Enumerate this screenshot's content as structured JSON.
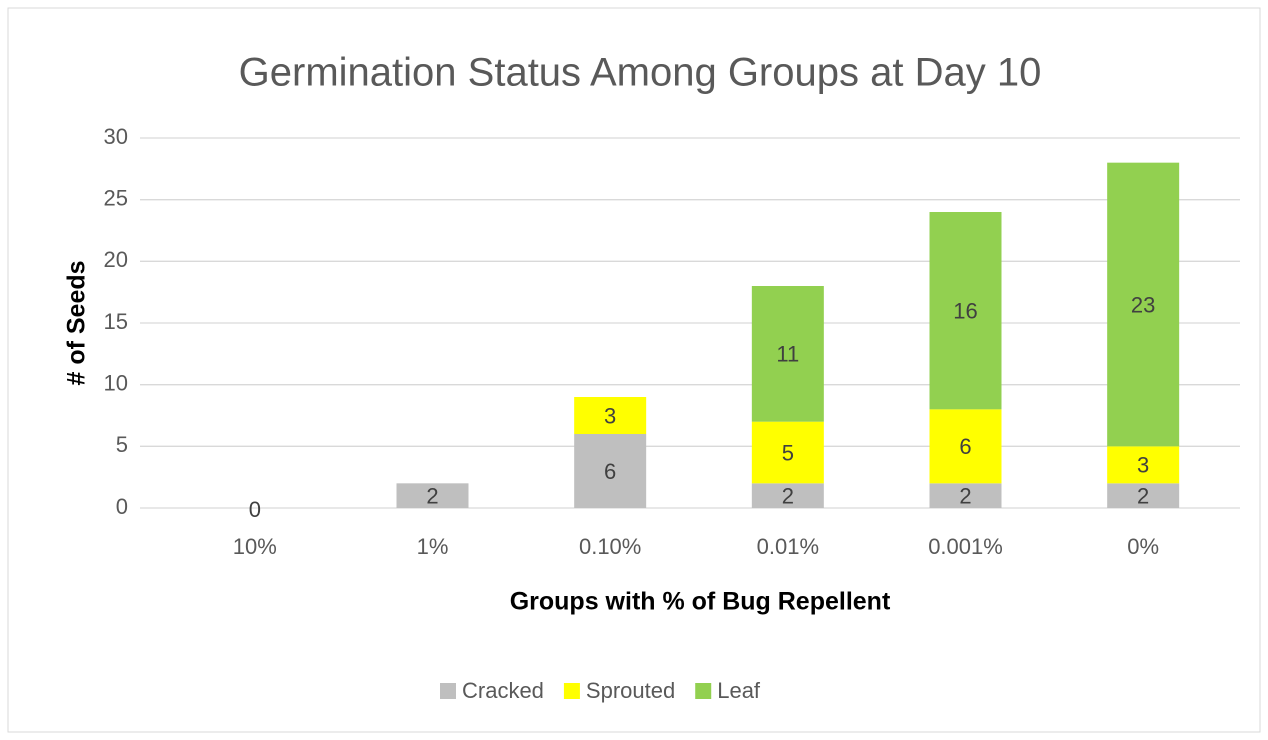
{
  "chart_data": {
    "type": "stacked_bar",
    "title": "Germination Status Among Groups at Day 10",
    "x_label": "Groups with % of Bug Repellent",
    "y_label": "# of Seeds",
    "categories": [
      "10%",
      "1%",
      "0.10%",
      "0.01%",
      "0.001%",
      "0%"
    ],
    "series": [
      {
        "name": "Cracked",
        "color": "#bfbfbf",
        "values": [
          0,
          2,
          6,
          2,
          2,
          2
        ]
      },
      {
        "name": "Sprouted",
        "color": "#ffff00",
        "values": [
          null,
          null,
          3,
          5,
          6,
          3
        ]
      },
      {
        "name": "Leaf",
        "color": "#92d050",
        "values": [
          null,
          null,
          null,
          11,
          16,
          23
        ]
      }
    ],
    "ylim": [
      0,
      30
    ],
    "yticks": [
      0,
      5,
      10,
      15,
      20,
      25,
      30
    ],
    "grid": true,
    "legend": "bottom"
  }
}
